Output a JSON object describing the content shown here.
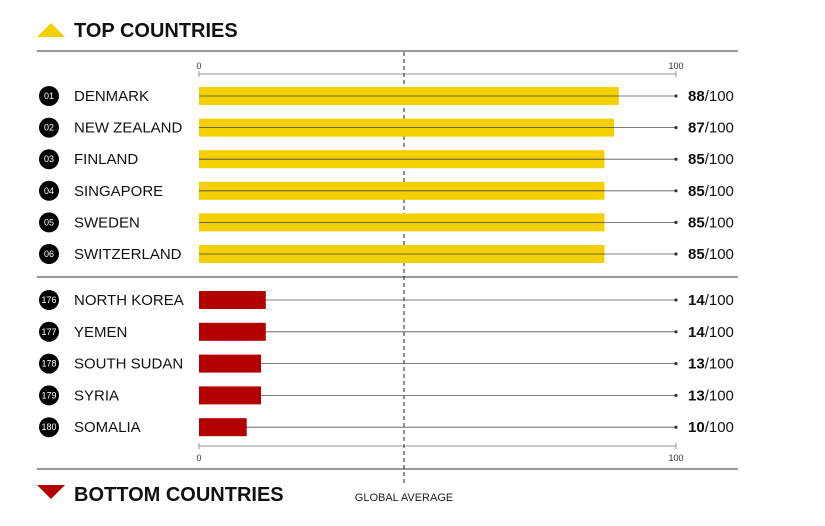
{
  "colors": {
    "top": "#f5d000",
    "bottom": "#b30000",
    "marker_top": "#f5d000",
    "marker_bottom": "#b30000"
  },
  "icons": {
    "top_marker": "triangle-up-icon",
    "bottom_marker": "triangle-down-icon"
  },
  "headers": {
    "top": "TOP COUNTRIES",
    "bottom": "BOTTOM COUNTRIES"
  },
  "chart_data": {
    "type": "bar",
    "orientation": "horizontal",
    "xlim": [
      0,
      100
    ],
    "axis_ticks": [
      "0",
      "100"
    ],
    "score_suffix": "/100",
    "reference_label": "GLOBAL AVERAGE",
    "groups": [
      {
        "name": "TOP COUNTRIES",
        "color": "#f5d000",
        "rows": [
          {
            "rank": "01",
            "country": "DENMARK",
            "value": 88
          },
          {
            "rank": "02",
            "country": "NEW ZEALAND",
            "value": 87
          },
          {
            "rank": "03",
            "country": "FINLAND",
            "value": 85
          },
          {
            "rank": "04",
            "country": "SINGAPORE",
            "value": 85
          },
          {
            "rank": "05",
            "country": "SWEDEN",
            "value": 85
          },
          {
            "rank": "06",
            "country": "SWITZERLAND",
            "value": 85
          }
        ]
      },
      {
        "name": "BOTTOM COUNTRIES",
        "color": "#b30000",
        "rows": [
          {
            "rank": "176",
            "country": "NORTH KOREA",
            "value": 14
          },
          {
            "rank": "177",
            "country": "YEMEN",
            "value": 14
          },
          {
            "rank": "178",
            "country": "SOUTH SUDAN",
            "value": 13
          },
          {
            "rank": "179",
            "country": "SYRIA",
            "value": 13
          },
          {
            "rank": "180",
            "country": "SOMALIA",
            "value": 10
          }
        ]
      }
    ]
  }
}
